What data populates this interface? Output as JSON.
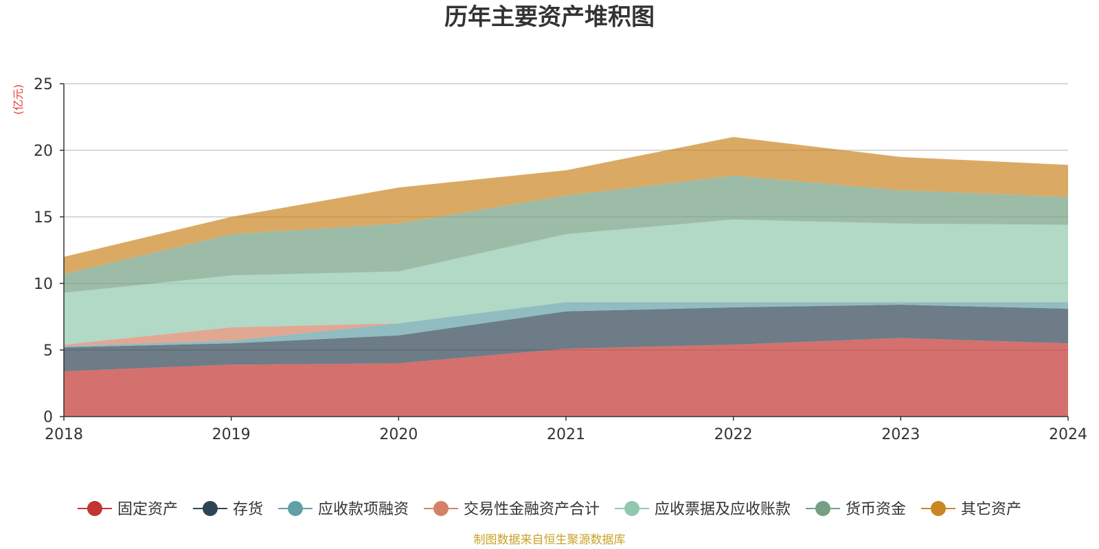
{
  "chart_data": {
    "type": "area",
    "stacked": true,
    "title": "历年主要资产堆积图",
    "y_unit_label": "(亿元)",
    "x": [
      "2018",
      "2019",
      "2020",
      "2021",
      "2022",
      "2023",
      "2024"
    ],
    "ylim": [
      0,
      25
    ],
    "yticks": [
      0,
      5,
      10,
      15,
      20,
      25
    ],
    "grid": true,
    "legend_position": "bottom",
    "series": [
      {
        "name": "固定资产",
        "color": "#c23531",
        "values": [
          3.4,
          3.9,
          4.0,
          5.1,
          5.4,
          5.9,
          5.5
        ]
      },
      {
        "name": "存货",
        "color": "#2f4554",
        "values": [
          1.8,
          1.6,
          2.1,
          2.8,
          2.8,
          2.5,
          2.6
        ]
      },
      {
        "name": "应收款项融资",
        "color": "#61a0a8",
        "values": [
          0.1,
          0.2,
          0.9,
          0.7,
          0.4,
          0.2,
          0.5
        ]
      },
      {
        "name": "交易性金融资产合计",
        "color": "#d48265",
        "values": [
          0.1,
          1.0,
          0.0,
          0.0,
          0.0,
          0.0,
          0.0
        ]
      },
      {
        "name": "应收票据及应收账款",
        "color": "#91c7ae",
        "values": [
          3.9,
          3.9,
          3.9,
          5.1,
          6.2,
          5.9,
          5.8
        ]
      },
      {
        "name": "货币资金",
        "color": "#749f83",
        "values": [
          1.4,
          3.1,
          3.6,
          2.9,
          3.3,
          2.5,
          2.1
        ]
      },
      {
        "name": "其它资产",
        "color": "#ca8622",
        "values": [
          1.3,
          1.3,
          2.7,
          1.9,
          2.9,
          2.5,
          2.4
        ]
      }
    ]
  },
  "source_note": "制图数据来自恒生聚源数据库",
  "colors": {
    "source_note": "#c9a227",
    "grid": "#cccccc",
    "axis": "#333333"
  }
}
